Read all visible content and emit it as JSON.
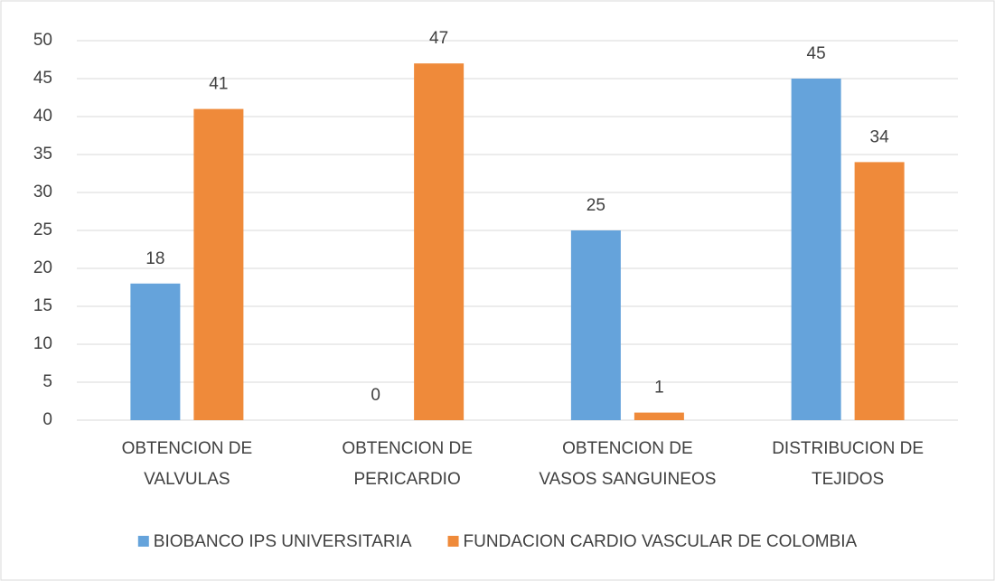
{
  "chart_data": {
    "type": "bar",
    "categories": [
      "OBTENCION DE VALVULAS",
      "OBTENCION DE PERICARDIO",
      "OBTENCION DE VASOS SANGUINEOS",
      "DISTRIBUCION DE TEJIDOS"
    ],
    "series": [
      {
        "name": "BIOBANCO IPS UNIVERSITARIA",
        "color": "#65a3db",
        "values": [
          18,
          0,
          25,
          45
        ]
      },
      {
        "name": "FUNDACION CARDIO VASCULAR DE COLOMBIA",
        "color": "#ef8a3a",
        "values": [
          41,
          47,
          1,
          34
        ]
      }
    ],
    "ylim": [
      0,
      50
    ],
    "yticks": [
      0,
      5,
      10,
      15,
      20,
      25,
      30,
      35,
      40,
      45,
      50
    ],
    "grid": true,
    "legend": "bottom"
  }
}
